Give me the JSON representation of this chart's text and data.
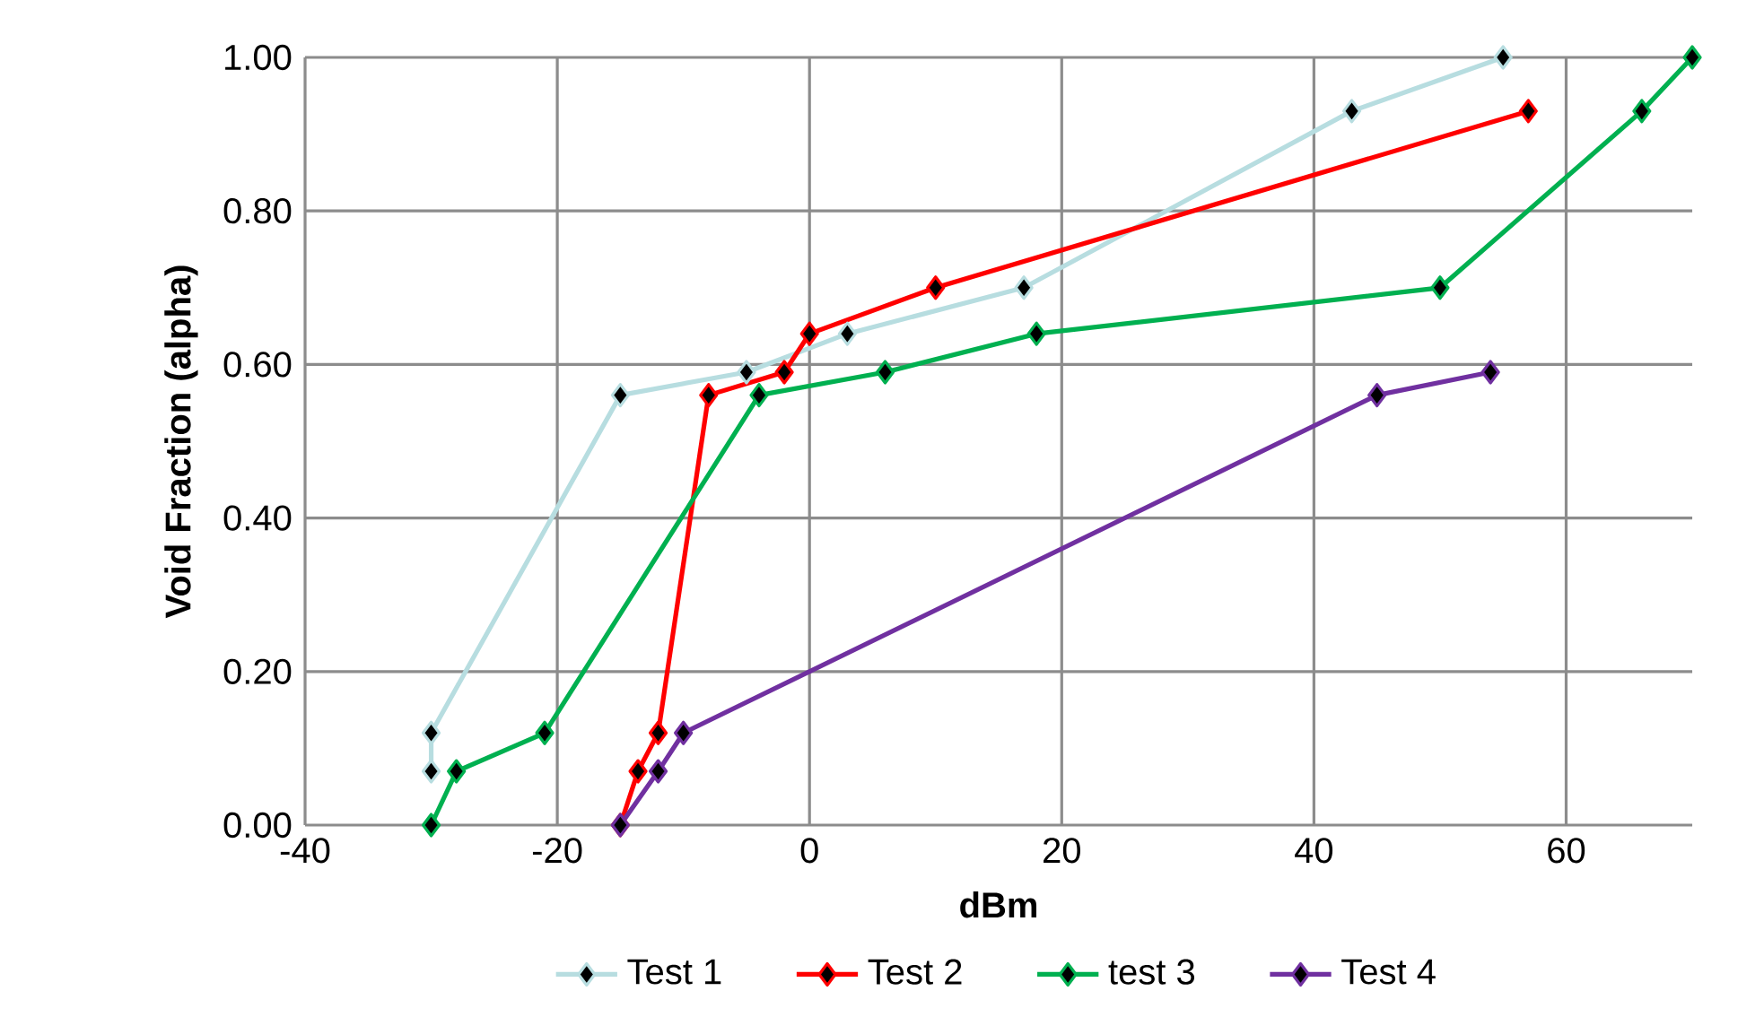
{
  "chart_data": {
    "type": "line",
    "xlabel": "dBm",
    "ylabel": "Void Fraction (alpha)",
    "xlim": [
      -40,
      70
    ],
    "xticks": [
      -40,
      -20,
      0,
      20,
      40,
      60
    ],
    "ylim": [
      0,
      1
    ],
    "yticks": [
      {
        "value": 0,
        "label": "0.00"
      },
      {
        "value": 0.2,
        "label": "0.20"
      },
      {
        "value": 0.4,
        "label": "0.40"
      },
      {
        "value": 0.6,
        "label": "0.60"
      },
      {
        "value": 0.8,
        "label": "0.80"
      },
      {
        "value": 1,
        "label": "1.00"
      }
    ],
    "grid": true,
    "legend": "bottom",
    "marker": "diamond",
    "line_style": "solid",
    "series": [
      {
        "name": "Test 1",
        "color": "#b7dde0",
        "x": [
          -30,
          -30,
          -15,
          -5,
          3,
          17,
          43,
          55
        ],
        "values": [
          0.07,
          0.12,
          0.56,
          0.59,
          0.64,
          0.7,
          0.93,
          1.0
        ]
      },
      {
        "name": "Test 2",
        "color": "#ff0000",
        "x": [
          -15,
          -13.6,
          -12,
          -8,
          -2,
          0,
          10,
          57
        ],
        "values": [
          0,
          0.07,
          0.12,
          0.56,
          0.59,
          0.64,
          0.7,
          0.93
        ]
      },
      {
        "name": "test 3",
        "color": "#00b050",
        "x": [
          -30,
          -28,
          -21,
          -4,
          6,
          18,
          50,
          66,
          70
        ],
        "values": [
          0,
          0.07,
          0.12,
          0.56,
          0.59,
          0.64,
          0.7,
          0.93,
          1.0
        ]
      },
      {
        "name": "Test 4",
        "color": "#7030a0",
        "x": [
          -15,
          -12,
          -10,
          45,
          54
        ],
        "values": [
          0,
          0.07,
          0.12,
          0.56,
          0.59
        ]
      }
    ]
  }
}
